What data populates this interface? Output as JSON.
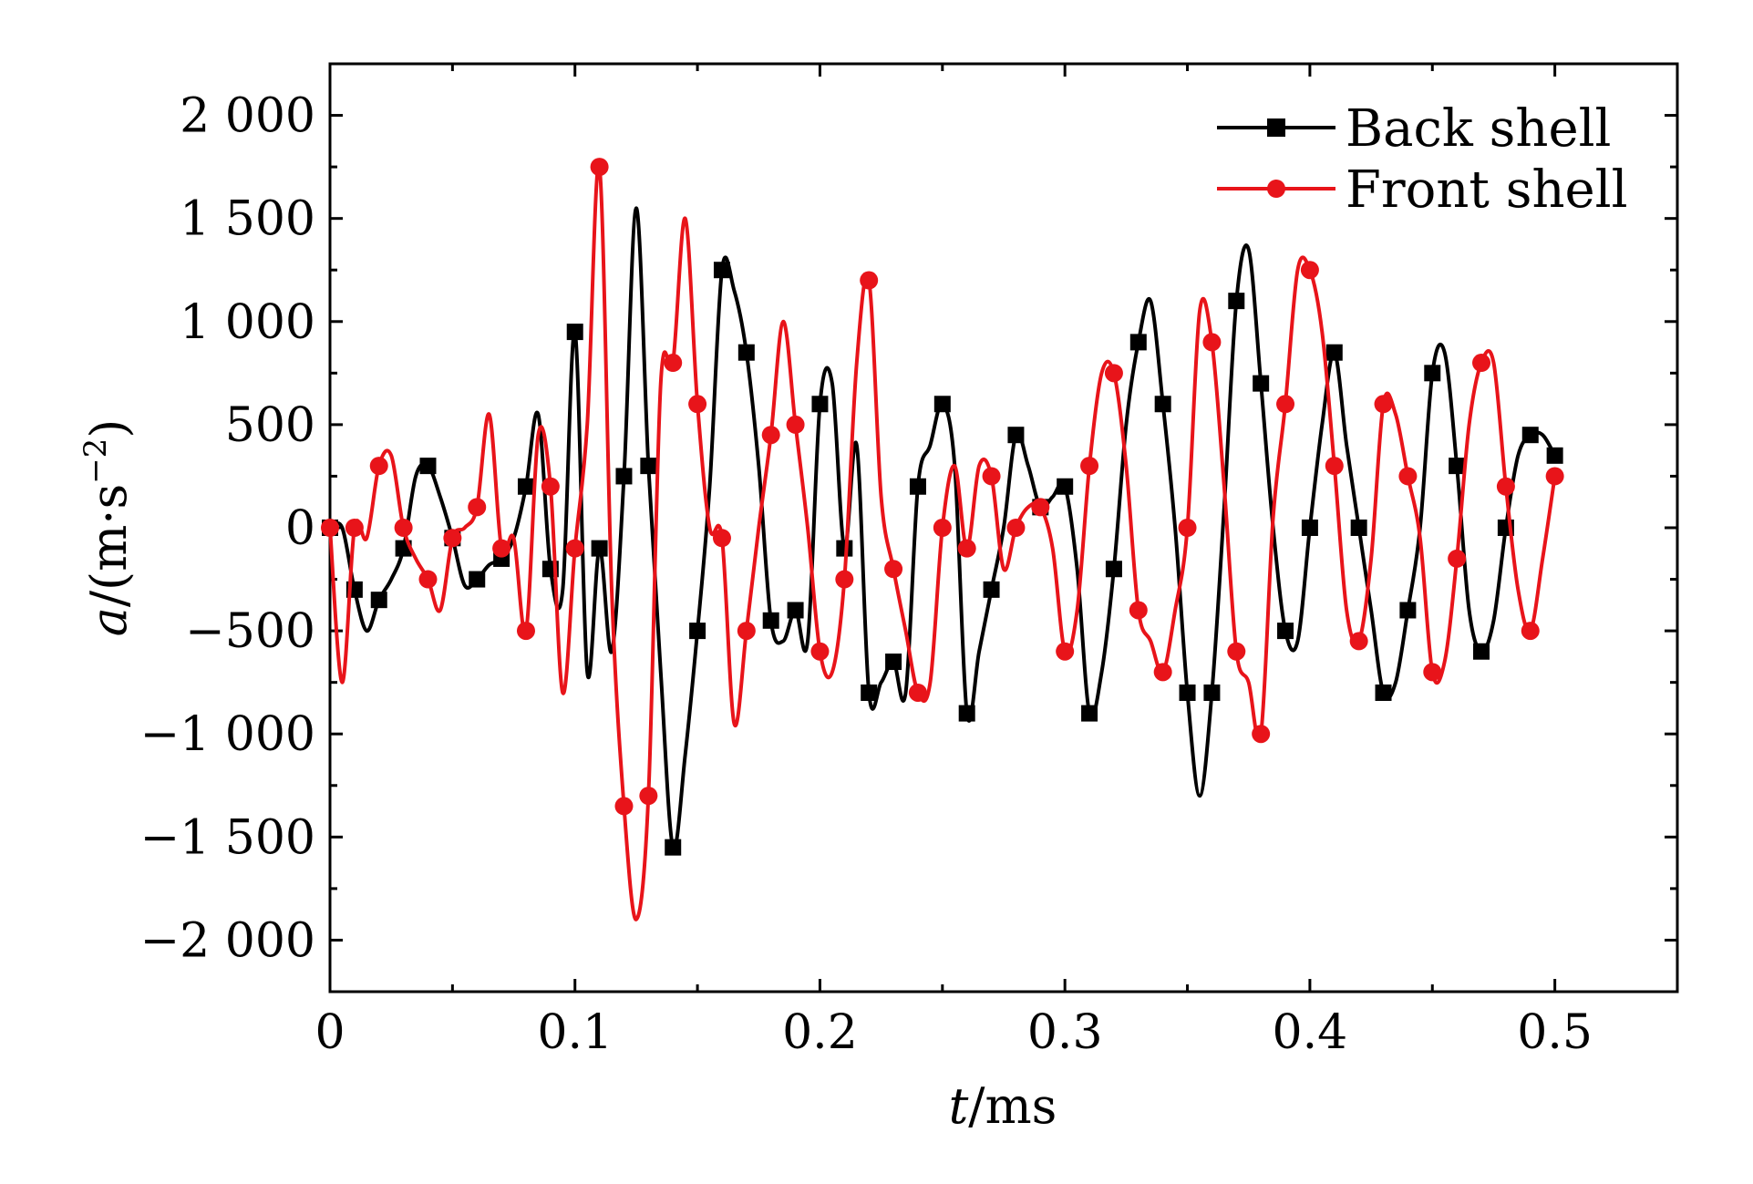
{
  "chart_data": {
    "type": "line",
    "x_axis": {
      "label": "t/ms",
      "label_italic_part": "t",
      "label_unit_part": "/ms",
      "min": 0,
      "max": 0.55,
      "ticks": [
        0,
        0.1,
        0.2,
        0.3,
        0.4,
        0.5
      ],
      "tick_labels": [
        "0",
        "0.1",
        "0.2",
        "0.3",
        "0.4",
        "0.5"
      ]
    },
    "y_axis": {
      "label_italic_part": "a",
      "label_unit_part": "/(m·s",
      "label_exponent": "−2",
      "label_close": ")",
      "min": -2250,
      "max": 2250,
      "ticks": [
        -2000,
        -1500,
        -1000,
        -500,
        0,
        500,
        1000,
        1500,
        2000
      ],
      "tick_labels": [
        "−2 000",
        "−1 500",
        "−1 000",
        "−500",
        "0",
        "500",
        "1 000",
        "1 500",
        "2 000"
      ]
    },
    "grid": false,
    "legend_position": "top-right",
    "series": [
      {
        "name": "Back shell",
        "color": "#000000",
        "marker": "square",
        "x": [
          0,
          0.005,
          0.01,
          0.015,
          0.02,
          0.025,
          0.03,
          0.035,
          0.04,
          0.045,
          0.05,
          0.055,
          0.06,
          0.065,
          0.07,
          0.075,
          0.08,
          0.085,
          0.09,
          0.095,
          0.1,
          0.105,
          0.11,
          0.115,
          0.12,
          0.125,
          0.13,
          0.135,
          0.14,
          0.145,
          0.15,
          0.155,
          0.16,
          0.165,
          0.17,
          0.175,
          0.18,
          0.185,
          0.19,
          0.195,
          0.2,
          0.205,
          0.21,
          0.215,
          0.22,
          0.225,
          0.23,
          0.235,
          0.24,
          0.245,
          0.25,
          0.255,
          0.26,
          0.265,
          0.27,
          0.275,
          0.28,
          0.285,
          0.29,
          0.295,
          0.3,
          0.305,
          0.31,
          0.315,
          0.32,
          0.325,
          0.33,
          0.335,
          0.34,
          0.345,
          0.35,
          0.355,
          0.36,
          0.365,
          0.37,
          0.375,
          0.38,
          0.385,
          0.39,
          0.395,
          0.4,
          0.405,
          0.41,
          0.415,
          0.42,
          0.425,
          0.43,
          0.435,
          0.44,
          0.445,
          0.45,
          0.455,
          0.46,
          0.465,
          0.47,
          0.475,
          0.48,
          0.485,
          0.49,
          0.495,
          0.5
        ],
        "y": [
          0,
          0,
          -300,
          -500,
          -350,
          -250,
          -100,
          250,
          300,
          150,
          -50,
          -280,
          -250,
          -180,
          -150,
          -50,
          200,
          550,
          -200,
          -300,
          950,
          -700,
          -100,
          -600,
          250,
          1550,
          300,
          -700,
          -1550,
          -1100,
          -500,
          200,
          1250,
          1150,
          850,
          300,
          -450,
          -550,
          -400,
          -550,
          600,
          700,
          -100,
          400,
          -800,
          -750,
          -650,
          -800,
          200,
          400,
          600,
          300,
          -900,
          -600,
          -300,
          0,
          450,
          300,
          100,
          150,
          200,
          -200,
          -900,
          -700,
          -200,
          500,
          900,
          1100,
          600,
          0,
          -800,
          -1300,
          -800,
          100,
          1100,
          1350,
          700,
          0,
          -500,
          -550,
          0,
          500,
          850,
          400,
          0,
          -400,
          -800,
          -750,
          -400,
          0,
          750,
          850,
          300,
          -400,
          -600,
          -450,
          0,
          350,
          450,
          450,
          350
        ]
      },
      {
        "name": "Front shell",
        "color": "#e8141a",
        "marker": "circle",
        "x": [
          0,
          0.005,
          0.01,
          0.015,
          0.02,
          0.025,
          0.03,
          0.035,
          0.04,
          0.045,
          0.05,
          0.055,
          0.06,
          0.065,
          0.07,
          0.075,
          0.08,
          0.085,
          0.09,
          0.095,
          0.1,
          0.105,
          0.11,
          0.115,
          0.12,
          0.125,
          0.13,
          0.135,
          0.14,
          0.145,
          0.15,
          0.155,
          0.16,
          0.165,
          0.17,
          0.175,
          0.18,
          0.185,
          0.19,
          0.195,
          0.2,
          0.205,
          0.21,
          0.215,
          0.22,
          0.225,
          0.23,
          0.235,
          0.24,
          0.245,
          0.25,
          0.255,
          0.26,
          0.265,
          0.27,
          0.275,
          0.28,
          0.285,
          0.29,
          0.295,
          0.3,
          0.305,
          0.31,
          0.315,
          0.32,
          0.325,
          0.33,
          0.335,
          0.34,
          0.345,
          0.35,
          0.355,
          0.36,
          0.365,
          0.37,
          0.375,
          0.38,
          0.385,
          0.39,
          0.395,
          0.4,
          0.405,
          0.41,
          0.415,
          0.42,
          0.425,
          0.43,
          0.435,
          0.44,
          0.445,
          0.45,
          0.455,
          0.46,
          0.465,
          0.47,
          0.475,
          0.48,
          0.485,
          0.49,
          0.495,
          0.5
        ],
        "y": [
          0,
          -750,
          0,
          -50,
          300,
          350,
          0,
          -150,
          -250,
          -400,
          -50,
          0,
          100,
          550,
          -100,
          -50,
          -500,
          450,
          200,
          -800,
          -100,
          500,
          1750,
          -300,
          -1350,
          -1900,
          -1300,
          700,
          800,
          1500,
          600,
          0,
          -50,
          -950,
          -500,
          0,
          450,
          1000,
          500,
          0,
          -600,
          -700,
          -250,
          800,
          1200,
          150,
          -200,
          -500,
          -800,
          -750,
          0,
          300,
          -100,
          300,
          250,
          -200,
          0,
          100,
          100,
          -100,
          -600,
          -400,
          300,
          750,
          750,
          300,
          -400,
          -550,
          -700,
          -400,
          0,
          1050,
          900,
          200,
          -600,
          -750,
          -1000,
          50,
          600,
          1250,
          1250,
          950,
          300,
          -400,
          -550,
          -150,
          600,
          550,
          250,
          -50,
          -700,
          -650,
          -150,
          500,
          800,
          800,
          200,
          -300,
          -500,
          -150,
          250
        ]
      }
    ]
  }
}
